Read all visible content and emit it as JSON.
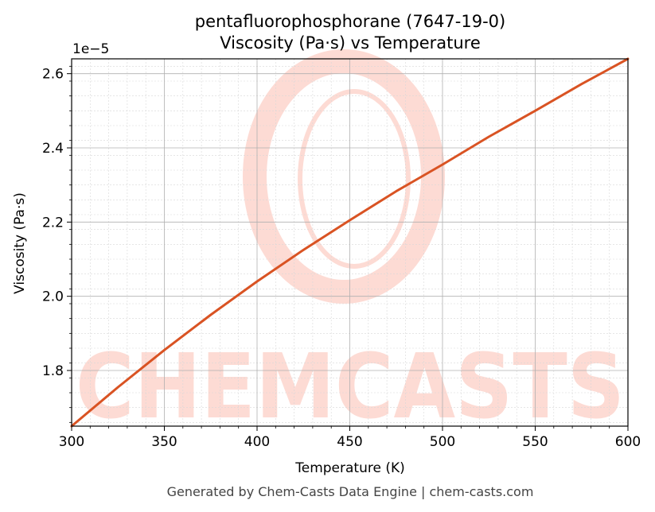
{
  "chart_data": {
    "type": "line",
    "title_line1": "pentafluorophosphorane (7647-19-0)",
    "title_line2": "Viscosity (Pa·s) vs Temperature",
    "xlabel": "Temperature (K)",
    "ylabel": "Viscosity (Pa·s)",
    "y_offset_label": "1e−5",
    "xlim": [
      300,
      600
    ],
    "ylim": [
      1.65,
      2.64
    ],
    "x_ticks": [
      300,
      350,
      400,
      450,
      500,
      550,
      600
    ],
    "x_tick_labels": [
      "300",
      "350",
      "400",
      "450",
      "500",
      "550",
      "600"
    ],
    "y_ticks": [
      1.8,
      2.0,
      2.2,
      2.4,
      2.6
    ],
    "y_tick_labels": [
      "1.8",
      "2.0",
      "2.2",
      "2.4",
      "2.6"
    ],
    "grid": true,
    "series": [
      {
        "color": "#d95323",
        "x": [
          300,
          325,
          350,
          375,
          400,
          425,
          450,
          475,
          500,
          525,
          550,
          575,
          600
        ],
        "y": [
          1.65,
          1.755,
          1.855,
          1.95,
          2.04,
          2.125,
          2.205,
          2.283,
          2.355,
          2.43,
          2.5,
          2.572,
          2.64
        ]
      }
    ]
  },
  "watermark": {
    "text": "CHEMCASTS",
    "color": "#fdd5cd"
  },
  "footer": {
    "text": "Generated by Chem-Casts Data Engine | chem-casts.com"
  }
}
